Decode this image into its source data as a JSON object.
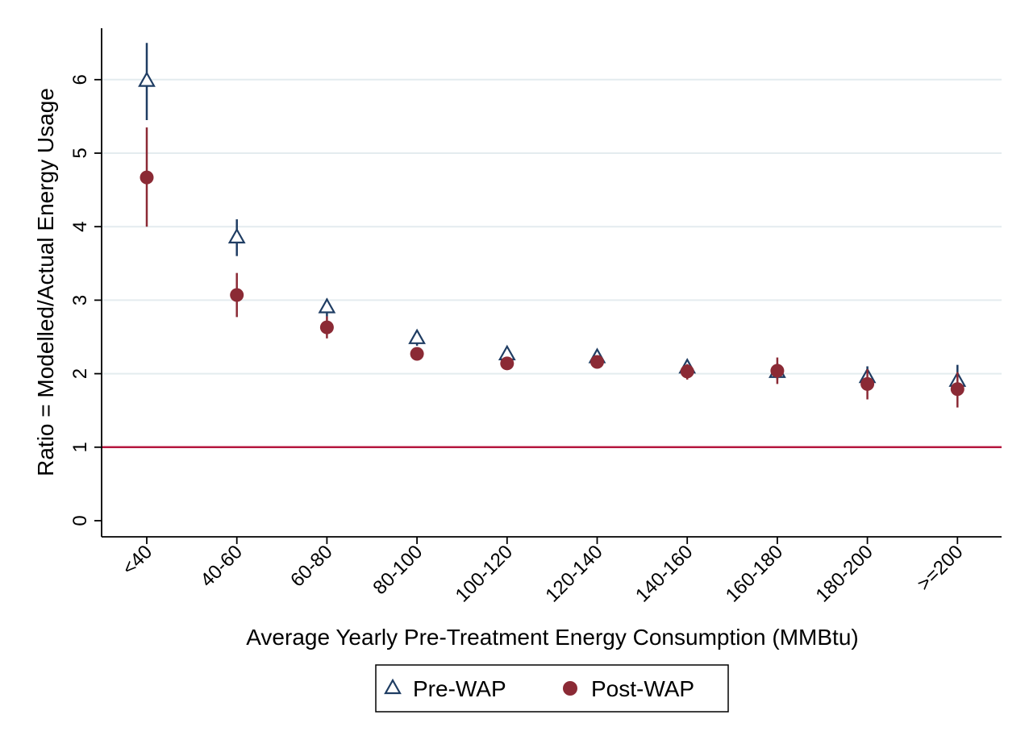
{
  "chart_data": {
    "type": "scatter",
    "title": "",
    "xlabel": "Average Yearly Pre-Treatment Energy Consumption (MMBtu)",
    "ylabel": "Ratio = Modelled/Actual Energy Usage",
    "categories": [
      "<40",
      "40-60",
      "60-80",
      "80-100",
      "100-120",
      "120-140",
      "140-160",
      "160-180",
      "180-200",
      ">=200"
    ],
    "yticks": [
      0,
      1,
      2,
      3,
      4,
      5,
      6
    ],
    "ylim": [
      -0.2,
      6.7
    ],
    "grid": "horizontal",
    "reference_line": {
      "y": 1,
      "color": "#b5173f"
    },
    "legend": {
      "position": "bottom"
    },
    "series": [
      {
        "name": "Pre-WAP",
        "marker": "hollow-triangle",
        "color": "#1f3d63",
        "values": [
          5.98,
          3.85,
          2.9,
          2.48,
          2.26,
          2.22,
          2.08,
          2.02,
          1.95,
          1.9
        ],
        "ci_low": [
          5.45,
          3.6,
          2.78,
          2.38,
          2.18,
          2.12,
          1.98,
          1.92,
          1.82,
          1.72
        ],
        "ci_high": [
          6.5,
          4.1,
          3.02,
          2.58,
          2.34,
          2.32,
          2.18,
          2.14,
          2.1,
          2.12
        ]
      },
      {
        "name": "Post-WAP",
        "marker": "filled-circle",
        "color": "#8b2a35",
        "values": [
          4.67,
          3.07,
          2.63,
          2.27,
          2.14,
          2.16,
          2.03,
          2.04,
          1.86,
          1.79
        ],
        "ci_low": [
          4.0,
          2.77,
          2.48,
          2.2,
          2.08,
          2.08,
          1.92,
          1.86,
          1.65,
          1.54
        ],
        "ci_high": [
          5.35,
          3.37,
          2.78,
          2.34,
          2.21,
          2.24,
          2.13,
          2.22,
          2.06,
          2.02
        ]
      }
    ]
  }
}
